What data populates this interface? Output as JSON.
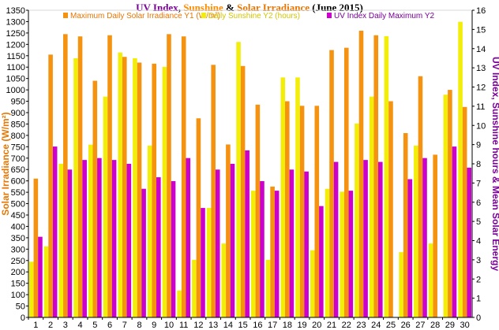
{
  "chart_data": {
    "type": "bar",
    "title": {
      "part1": "UV Index",
      "sep1": ", ",
      "part2": "Sunshine",
      "sep2": " & ",
      "part3": "Solar Irradiance",
      "part4": " (June 2015)"
    },
    "title_colors": {
      "part1": "#7a0099",
      "sep1": "#000000",
      "part2": "#ff8c00",
      "sep2": "#000000",
      "part3": "#e87500",
      "part4": "#000000"
    },
    "ylabel_left": "Solar Irradiance (W/m²)",
    "ylabel_right": "UV Index, Sunshine hours & Mean Solar Energy",
    "ylim_left": [
      0,
      1350
    ],
    "ylim_right": [
      0,
      16
    ],
    "yticks_left": [
      "0",
      "50",
      "100",
      "150",
      "200",
      "250",
      "300",
      "350",
      "400",
      "450",
      "500",
      "550",
      "600",
      "650",
      "700",
      "750",
      "800",
      "850",
      "900",
      "950",
      "1000",
      "1050",
      "1100",
      "1150",
      "1200",
      "1250",
      "1300",
      "1350"
    ],
    "yticks_right": [
      "0",
      "1",
      "2",
      "3",
      "4",
      "5",
      "6",
      "7",
      "8",
      "9",
      "10",
      "11",
      "12",
      "13",
      "14",
      "15",
      "16"
    ],
    "categories": [
      "1",
      "2",
      "3",
      "4",
      "5",
      "6",
      "7",
      "8",
      "9",
      "10",
      "11",
      "12",
      "13",
      "14",
      "15",
      "16",
      "17",
      "18",
      "19",
      "20",
      "21",
      "22",
      "23",
      "24",
      "25",
      "26",
      "27",
      "28",
      "29",
      "30"
    ],
    "grid": false,
    "legend_position": "top",
    "series": [
      {
        "name": "Maximum Daily Solar Irradiance Y1 (W/m²)",
        "axis": "left",
        "color": "#f5920f",
        "values": [
          610,
          1155,
          1245,
          1235,
          1040,
          1240,
          1145,
          1120,
          1115,
          1245,
          1235,
          875,
          1110,
          760,
          1105,
          935,
          575,
          950,
          930,
          930,
          1175,
          1185,
          1260,
          1240,
          950,
          810,
          1060,
          715,
          1000,
          925
        ]
      },
      {
        "name": "Daily Sunshine Y2 (hours)",
        "axis": "right",
        "color": "#f2ee0a",
        "values": [
          2.9,
          3.7,
          8.0,
          13.5,
          9.0,
          11.5,
          13.8,
          13.5,
          8.95,
          13.05,
          1.4,
          3.0,
          5.7,
          3.85,
          14.35,
          6.6,
          3.0,
          12.5,
          12.5,
          3.5,
          6.7,
          6.55,
          10.1,
          11.5,
          14.65,
          3.4,
          8.95,
          3.85,
          11.6,
          15.4
        ]
      },
      {
        "name": "UV Index Daily Maximum Y2",
        "axis": "right",
        "color": "#cc00cc",
        "values": [
          4.2,
          8.9,
          7.7,
          8.2,
          8.3,
          8.2,
          8.0,
          6.7,
          7.3,
          7.1,
          8.3,
          5.7,
          7.7,
          8.0,
          8.7,
          7.1,
          6.6,
          7.7,
          7.6,
          5.8,
          8.1,
          6.6,
          8.2,
          8.1,
          0,
          7.2,
          8.3,
          0,
          8.9,
          7.8
        ]
      }
    ]
  }
}
